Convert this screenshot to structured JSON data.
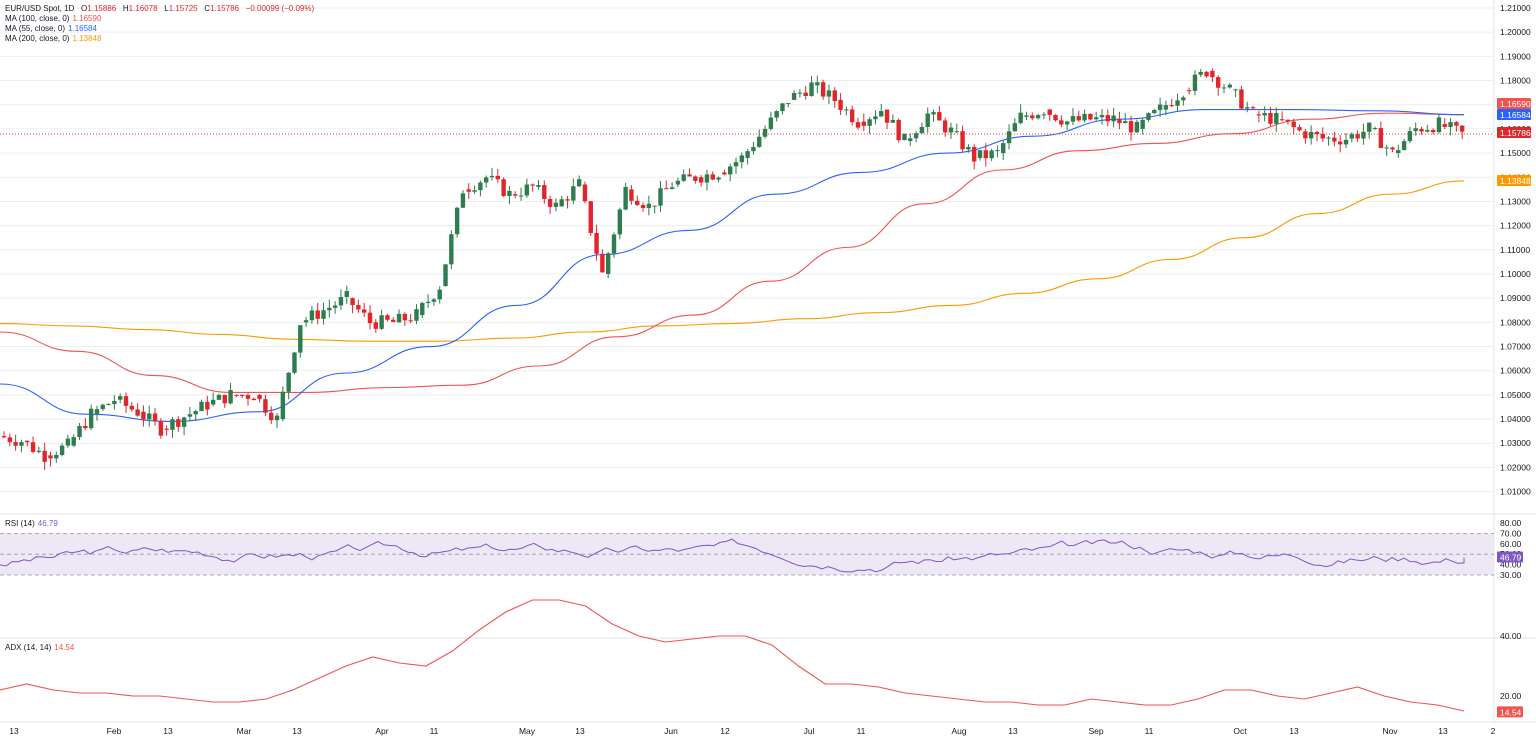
{
  "header": {
    "symbol": "EUR/USD Spot, 1D",
    "open_label": "O",
    "open": "1.15886",
    "high_label": "H",
    "high": "1.16078",
    "low_label": "L",
    "low": "1.15725",
    "close_label": "C",
    "close": "1.15786",
    "change": "−0.00099 (−0.09%)"
  },
  "legend": [
    {
      "label": "MA (100, close, 0)",
      "value": "1.16590",
      "color": "#f05350"
    },
    {
      "label": "MA (55, close, 0)",
      "value": "1.16584",
      "color": "#2962ff"
    },
    {
      "label": "MA (200, close, 0)",
      "value": "1.13848",
      "color": "#ff9800"
    }
  ],
  "rsi_legend": {
    "label": "RSI (14)",
    "value": "46.79",
    "color": "#7e57c2"
  },
  "adx_legend": {
    "label": "ADX (14, 14)",
    "value": "14.54",
    "color": "#f05350"
  },
  "colors": {
    "up": "#2e7d4f",
    "down": "#e0262b",
    "ma55": "#2962ff",
    "ma100": "#f05350",
    "ma200": "#ff9800",
    "rsi": "#7e57c2",
    "rsi_band": "#ede7f6",
    "adx": "#f05350",
    "grid": "#eeeeee",
    "last_price_line": "#e0262b"
  },
  "chart_data": {
    "type": "candlestick",
    "title": "EUR/USD Spot, 1D",
    "y_ticks": [
      "1.21000",
      "1.20000",
      "1.19000",
      "1.18000",
      "1.17000",
      "1.16000",
      "1.15000",
      "1.14000",
      "1.13000",
      "1.12000",
      "1.11000",
      "1.10000",
      "1.09000",
      "1.08000",
      "1.07000",
      "1.06000",
      "1.05000",
      "1.04000",
      "1.03000",
      "1.02000",
      "1.01000"
    ],
    "ylim": [
      1.005,
      1.213
    ],
    "x_ticks": [
      "13",
      "Feb",
      "13",
      "Mar",
      "13",
      "Apr",
      "11",
      "May",
      "13",
      "Jun",
      "12",
      "Jul",
      "11",
      "Aug",
      "13",
      "Sep",
      "11",
      "Oct",
      "13",
      "Nov",
      "13",
      "2"
    ],
    "price_labels": [
      {
        "value": "1.16590",
        "color": "#f05350"
      },
      {
        "value": "1.16584",
        "color": "#2962ff"
      },
      {
        "value": "1.15786",
        "color": "#e0262b"
      },
      {
        "value": "1.13848",
        "color": "#ff9800"
      }
    ],
    "last_price": 1.15786,
    "ma200": [
      1.0795,
      1.0785,
      1.077,
      1.075,
      1.073,
      1.0722,
      1.0722,
      1.0735,
      1.076,
      1.0785,
      1.0795,
      1.0815,
      1.084,
      1.087,
      1.092,
      1.098,
      1.106,
      1.115,
      1.125,
      1.133,
      1.13848
    ],
    "ma100": [
      1.076,
      1.068,
      1.058,
      1.051,
      1.051,
      1.053,
      1.054,
      1.062,
      1.074,
      1.083,
      1.097,
      1.111,
      1.129,
      1.143,
      1.151,
      1.154,
      1.158,
      1.164,
      1.1665,
      1.1659
    ],
    "ma55": [
      1.0545,
      1.042,
      1.039,
      1.043,
      1.059,
      1.07,
      1.087,
      1.108,
      1.118,
      1.133,
      1.142,
      1.15,
      1.157,
      1.164,
      1.168,
      1.168,
      1.1675,
      1.16584
    ],
    "candles_close": [
      1.031,
      1.025,
      1.029,
      1.042,
      1.048,
      1.043,
      1.036,
      1.041,
      1.046,
      1.05,
      1.05,
      1.04,
      1.08,
      1.085,
      1.09,
      1.08,
      1.08,
      1.083,
      1.095,
      1.135,
      1.14,
      1.133,
      1.136,
      1.128,
      1.137,
      1.1,
      1.135,
      1.128,
      1.137,
      1.14,
      1.142,
      1.148,
      1.16,
      1.172,
      1.178,
      1.172,
      1.163,
      1.168,
      1.155,
      1.166,
      1.159,
      1.148,
      1.15,
      1.165,
      1.168,
      1.163,
      1.164,
      1.164,
      1.16,
      1.168,
      1.176,
      1.184,
      1.176,
      1.166,
      1.164,
      1.159,
      1.156,
      1.156,
      1.16,
      1.15,
      1.16,
      1.162,
      1.1578
    ],
    "rsi": {
      "label": "RSI (14)",
      "value": 46.79,
      "y_ticks": [
        "80.00",
        "70.00",
        "60.00",
        "50.00",
        "40.00",
        "30.00"
      ],
      "band": [
        30,
        70
      ],
      "midline": 50
    },
    "adx": {
      "label": "ADX (14, 14)",
      "value": 14.54,
      "y_ticks": [
        "40.00",
        "20.00"
      ]
    }
  }
}
